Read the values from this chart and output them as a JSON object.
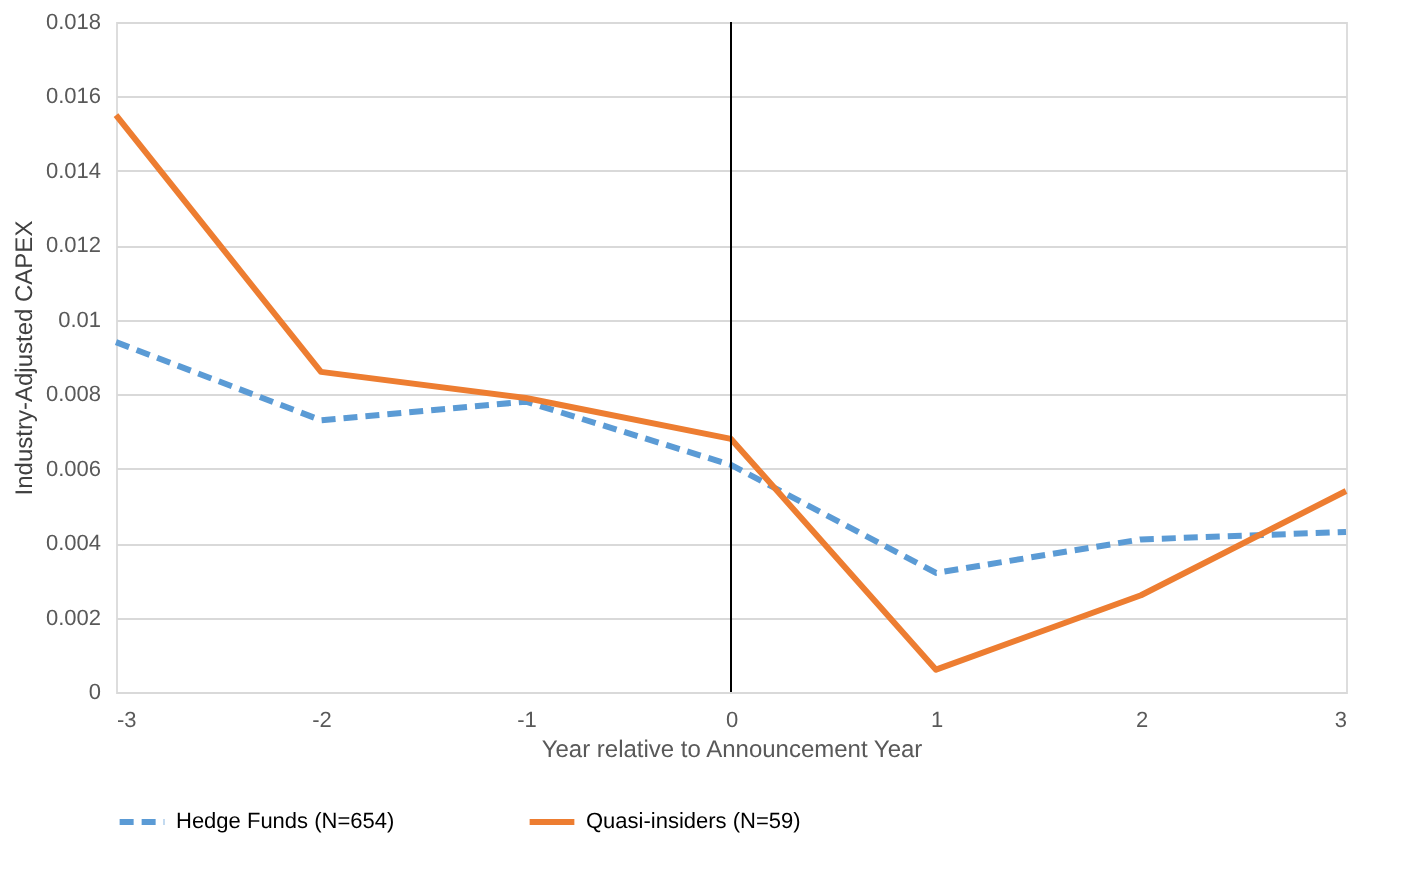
{
  "chart_data": {
    "type": "line",
    "xlabel": "Year relative to Announcement Year",
    "ylabel": "Industry-Adjusted CAPEX",
    "x": [
      -3,
      -2,
      -1,
      0,
      1,
      2,
      3
    ],
    "series": [
      {
        "name": "Hedge Funds (N=654)",
        "color": "#5b9bd5",
        "line_style": "dashed",
        "values": [
          0.0094,
          0.0073,
          0.0078,
          0.0061,
          0.0032,
          0.0041,
          0.0043
        ]
      },
      {
        "name": "Quasi-insiders (N=59)",
        "color": "#ed7d31",
        "line_style": "solid",
        "values": [
          0.0155,
          0.0086,
          0.0079,
          0.0068,
          0.0006,
          0.0026,
          0.0054
        ]
      }
    ],
    "xlim": [
      -3,
      3
    ],
    "xticks": [
      -3,
      -2,
      -1,
      0,
      1,
      2,
      3
    ],
    "ylim": [
      0,
      0.018
    ],
    "yticks": [
      0,
      0.002,
      0.004,
      0.006,
      0.008,
      0.01,
      0.012,
      0.014,
      0.016,
      0.018
    ],
    "ref_lines": [
      {
        "axis": "x",
        "value": 0,
        "color": "#000000"
      }
    ],
    "grid": "y",
    "legend": "bottom",
    "marker": "none"
  }
}
